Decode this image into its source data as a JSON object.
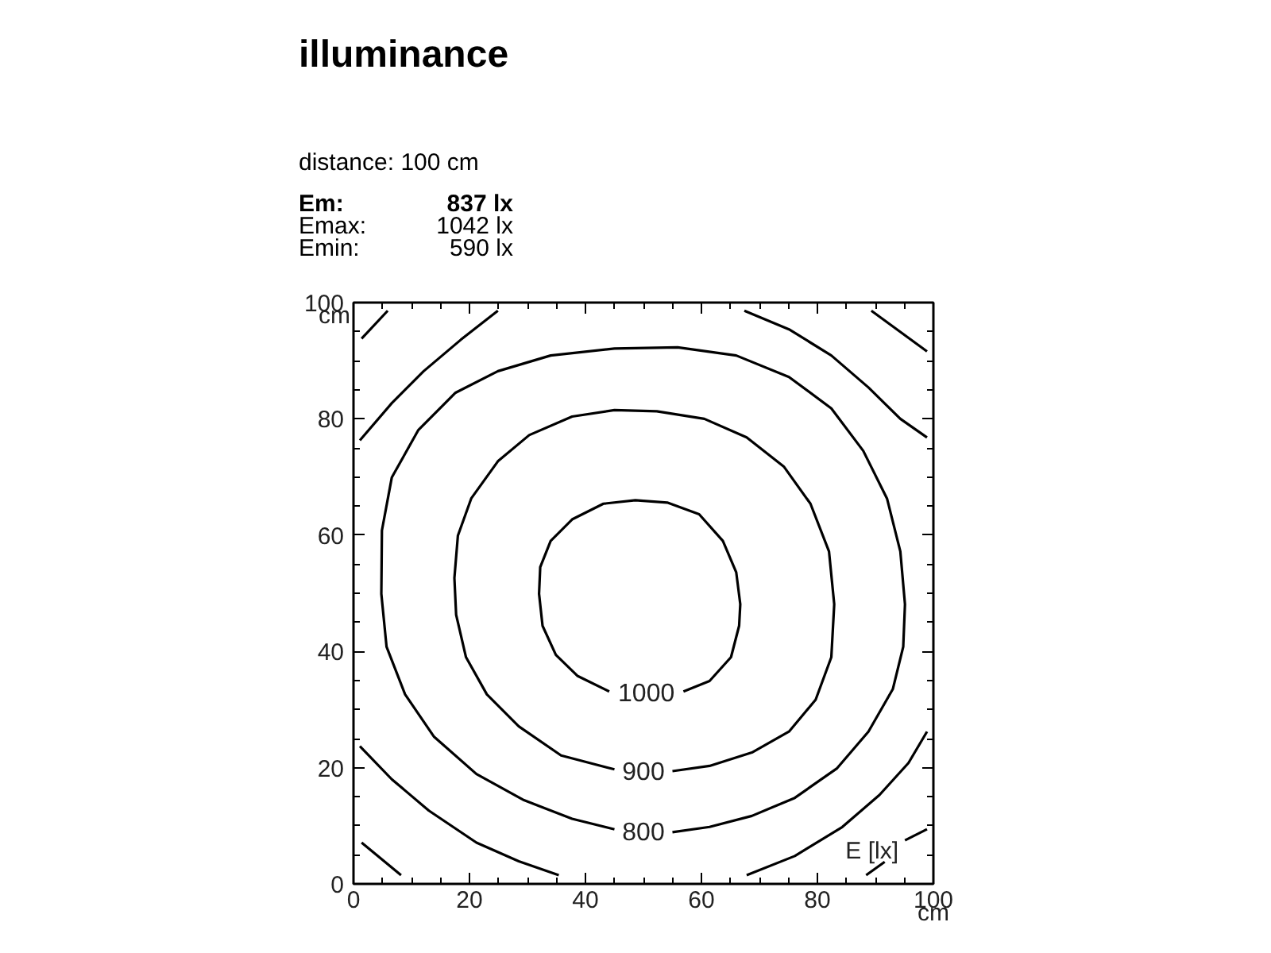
{
  "chart_data": {
    "type": "line",
    "title": "illuminance",
    "subtitle": "distance: 100 cm",
    "xlabel": "cm",
    "ylabel": "cm",
    "xlim": [
      0,
      100
    ],
    "ylim": [
      0,
      100
    ],
    "xticks": [
      0,
      20,
      40,
      60,
      80,
      100
    ],
    "yticks": [
      0,
      20,
      40,
      60,
      80,
      100
    ],
    "grid": false,
    "marker": "none",
    "line_style": "solid",
    "annotations": [
      "1000",
      "900",
      "800",
      "E [lx]",
      "Em:",
      "837 lx",
      "Emax:",
      "1042 lx",
      "Emin:",
      "590 lx"
    ],
    "series": [
      {
        "color": "#000000",
        "x": [
          56.9,
          61.4,
          65.1,
          66.5,
          66.7,
          66.0,
          63.7,
          59.6,
          54.1,
          48.6,
          43.1,
          37.7,
          34.0,
          32.2,
          32.0,
          32.6,
          34.9,
          38.6,
          44.1
        ],
        "values": [
          33.1,
          34.9,
          39.0,
          44.4,
          48.1,
          53.6,
          59.0,
          63.6,
          65.6,
          66.0,
          65.4,
          62.7,
          59.0,
          54.5,
          49.9,
          44.4,
          39.4,
          35.8,
          33.1
        ]
      },
      {
        "color": "#000000",
        "x": [
          55.0,
          61.4,
          68.7,
          75.1,
          79.7,
          82.4,
          82.9,
          82.0,
          78.8,
          74.2,
          67.8,
          60.5,
          52.3,
          45.0,
          37.7,
          30.3,
          24.9,
          20.3,
          18.0,
          17.4,
          17.7,
          19.4,
          23.0,
          28.5,
          35.8,
          45.0
        ],
        "values": [
          19.4,
          20.3,
          22.6,
          26.2,
          31.7,
          39.0,
          48.1,
          57.2,
          65.4,
          71.8,
          76.8,
          80.0,
          81.3,
          81.5,
          80.4,
          77.2,
          72.7,
          66.3,
          59.9,
          52.6,
          46.3,
          39.0,
          32.6,
          27.1,
          22.1,
          19.7
        ]
      },
      {
        "color": "#000000",
        "x": [
          55.0,
          61.4,
          68.7,
          76.1,
          83.4,
          88.8,
          93.0,
          94.8,
          95.1,
          94.3,
          92.0,
          87.9,
          82.4,
          75.1,
          66.0,
          55.9,
          45.0,
          34.0,
          24.9,
          17.6,
          11.2,
          6.6,
          4.9,
          4.8,
          5.7,
          8.9,
          13.9,
          21.2,
          29.4,
          37.7,
          45.0
        ],
        "values": [
          8.9,
          9.8,
          11.7,
          14.8,
          19.9,
          26.2,
          33.5,
          40.8,
          48.1,
          57.2,
          66.3,
          74.5,
          81.8,
          87.2,
          90.9,
          92.3,
          92.1,
          90.9,
          88.2,
          84.5,
          78.1,
          69.9,
          60.8,
          49.9,
          40.8,
          32.6,
          25.3,
          18.9,
          14.4,
          11.2,
          9.4
        ]
      },
      {
        "color": "#000000",
        "x": [
          1.1,
          6.6,
          12.1,
          18.5,
          24.9
        ],
        "values": [
          76.3,
          82.7,
          88.2,
          93.6,
          98.6
        ]
      },
      {
        "color": "#000000",
        "x": [
          67.4,
          75.1,
          82.4,
          88.8,
          94.3,
          98.9
        ],
        "values": [
          98.6,
          95.4,
          90.9,
          85.4,
          80.0,
          76.8
        ]
      },
      {
        "color": "#000000",
        "x": [
          1.1,
          6.6,
          13.0,
          21.2,
          28.5,
          35.4
        ],
        "values": [
          23.7,
          18.0,
          12.6,
          7.1,
          3.9,
          1.5
        ]
      },
      {
        "color": "#000000",
        "x": [
          67.8,
          76.1,
          84.3,
          90.7,
          95.7,
          98.9
        ],
        "values": [
          1.5,
          4.8,
          9.8,
          15.3,
          20.8,
          26.2
        ]
      },
      {
        "color": "#000000",
        "x": [
          1.4,
          5.9
        ],
        "values": [
          93.8,
          98.6
        ]
      },
      {
        "color": "#000000",
        "x": [
          89.3,
          98.9
        ],
        "values": [
          98.6,
          91.6
        ]
      },
      {
        "color": "#000000",
        "x": [
          1.4,
          8.2
        ],
        "values": [
          7.1,
          1.5
        ]
      },
      {
        "color": "#000000",
        "x": [
          88.4,
          91.6
        ],
        "values": [
          1.5,
          3.8
        ]
      },
      {
        "color": "#000000",
        "x": [
          95.1,
          98.9
        ],
        "values": [
          7.5,
          9.4
        ]
      }
    ]
  }
}
